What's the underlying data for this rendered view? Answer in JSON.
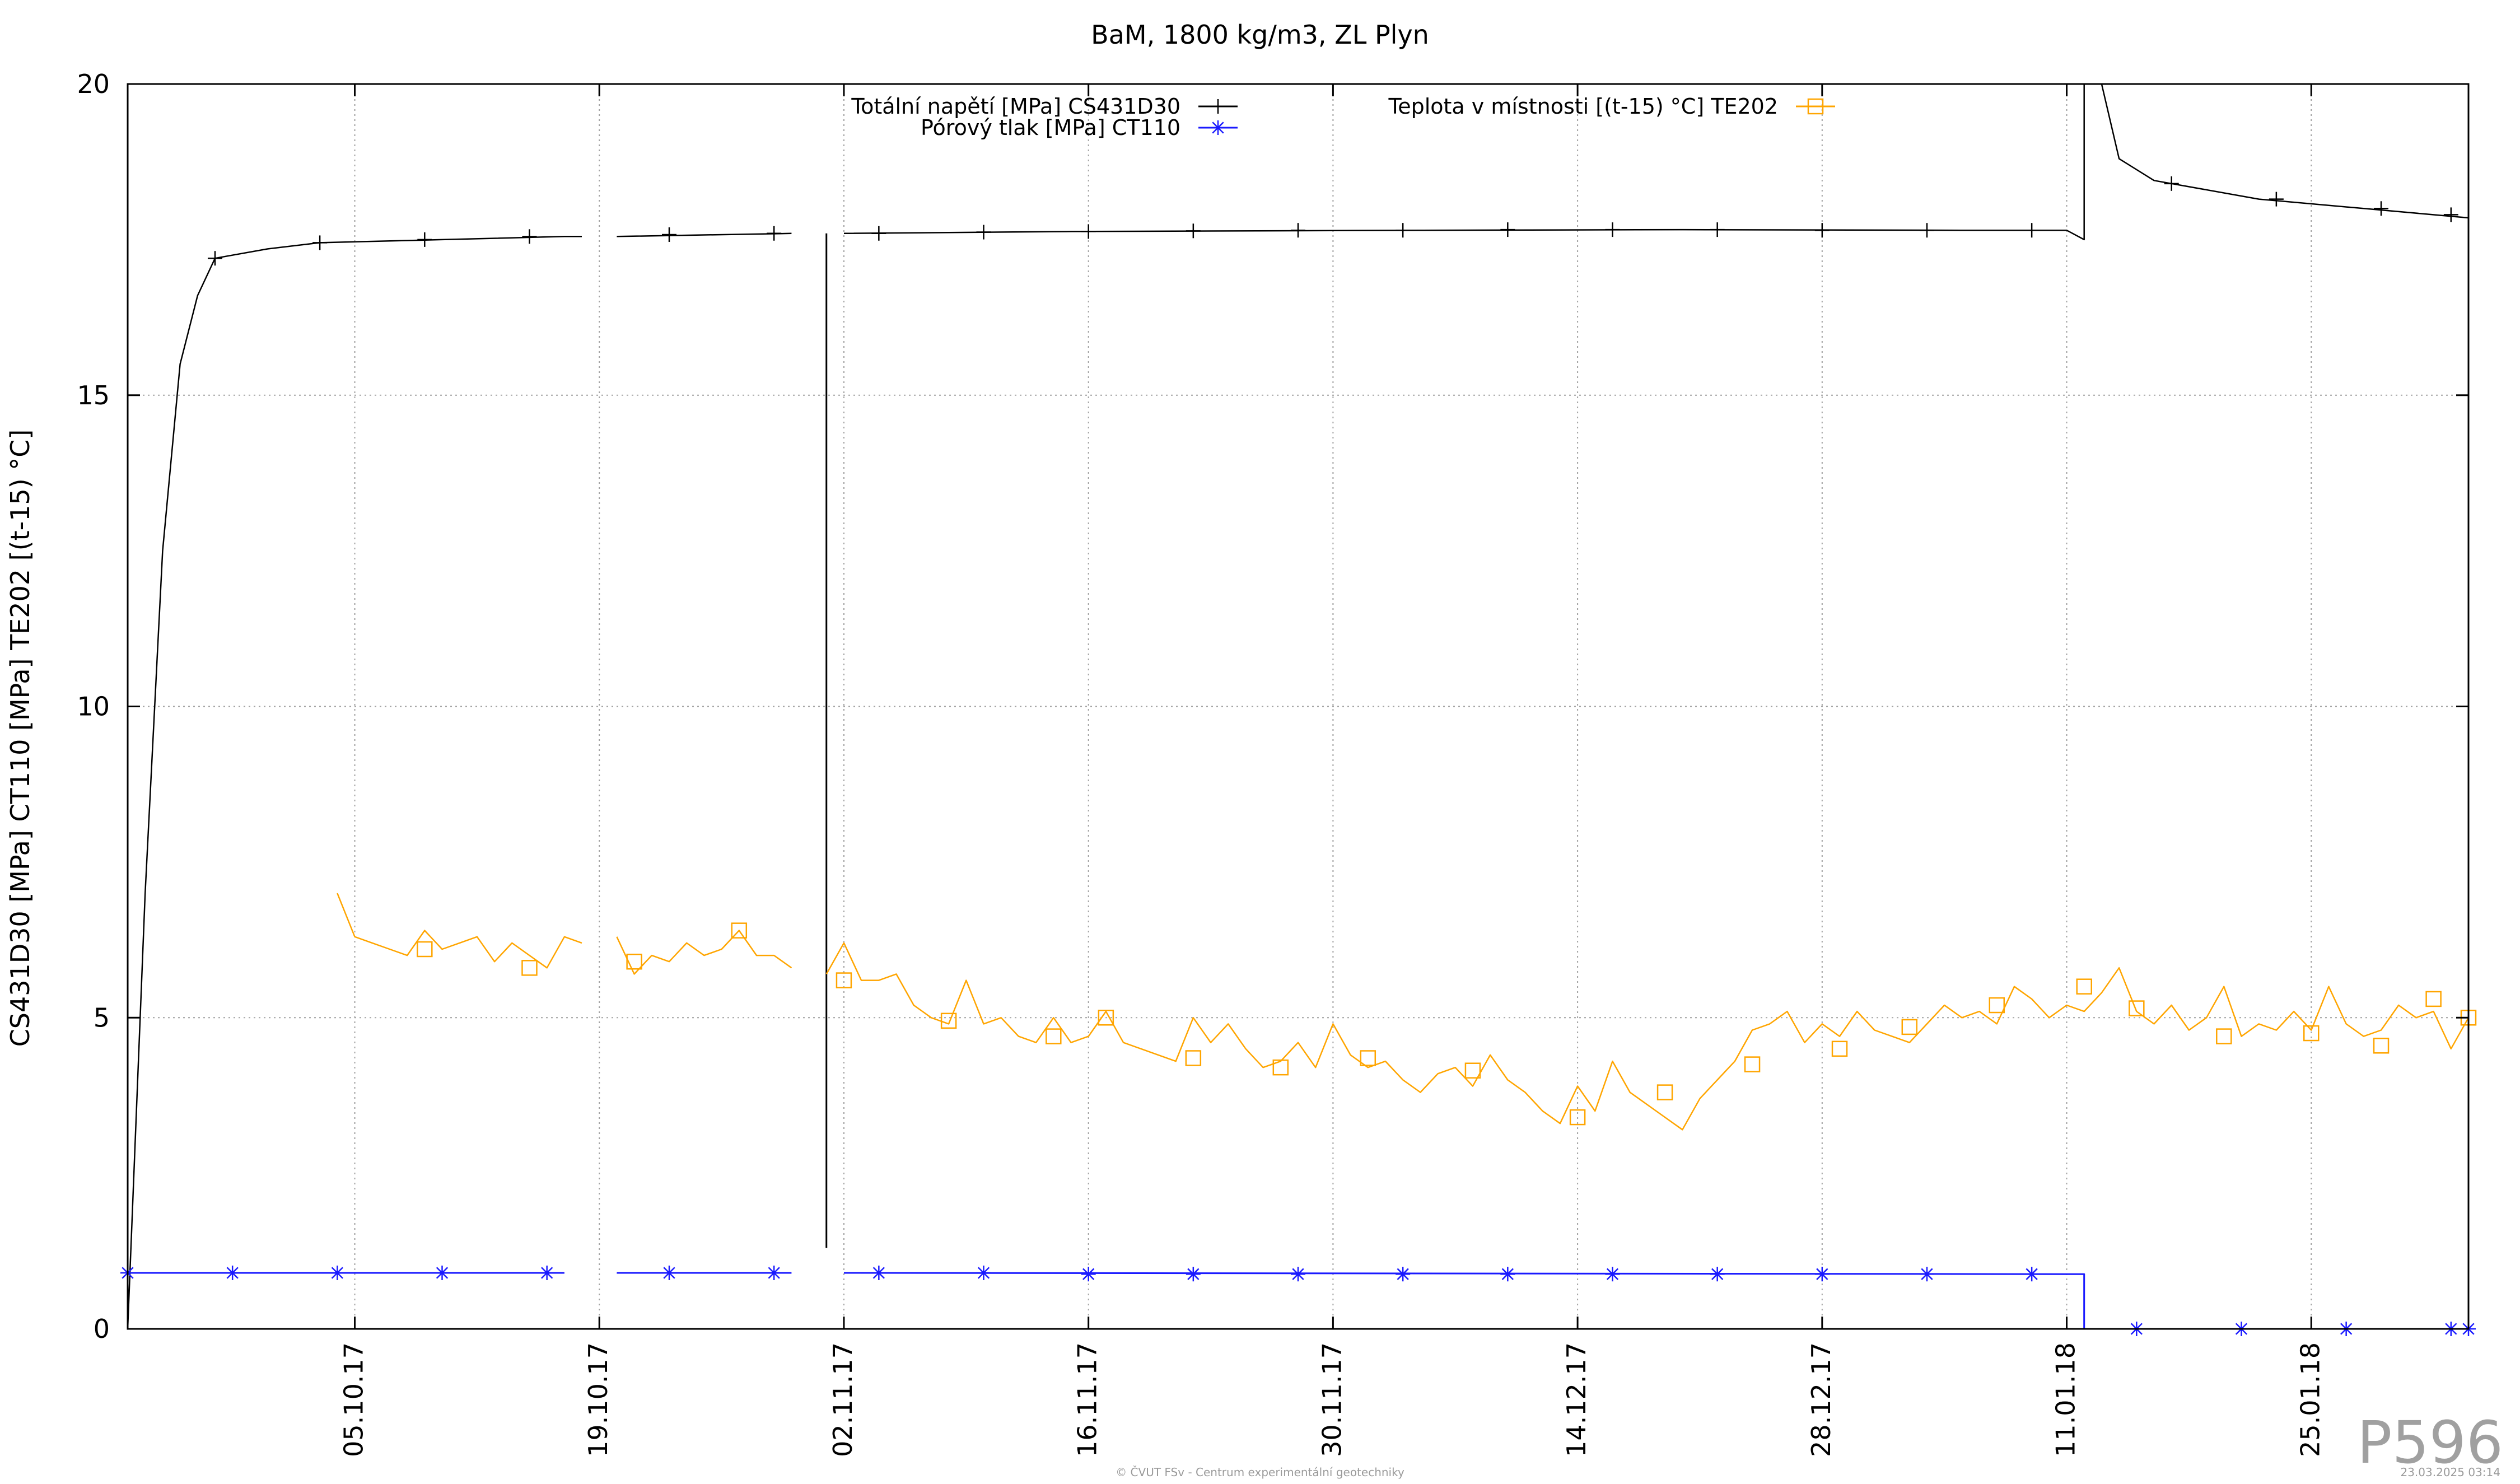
{
  "chart_data": {
    "type": "line",
    "title": "BaM, 1800 kg/m3, ZL Plyn",
    "ylabel": "CS431D30 [MPa] CT110 [MPa] TE202 [(t-15) °C]",
    "xlabel": "",
    "ylim": [
      0,
      20
    ],
    "xlim": [
      "2017-09-22",
      "2018-02-03"
    ],
    "y_ticks": [
      0,
      5,
      10,
      15,
      20
    ],
    "x_ticks": [
      "05.10.17",
      "19.10.17",
      "02.11.17",
      "16.11.17",
      "30.11.17",
      "14.12.17",
      "28.12.17",
      "11.01.18",
      "25.01.18"
    ],
    "grid": true,
    "legend_position": "top",
    "series": [
      {
        "name": "Totální napětí [MPa] CS431D30",
        "color": "#000000",
        "marker": "plus",
        "points": [
          [
            "2017-09-22",
            0.0
          ],
          [
            "2017-09-23",
            7.0
          ],
          [
            "2017-09-24",
            12.5
          ],
          [
            "2017-09-25",
            15.5
          ],
          [
            "2017-09-26",
            16.6
          ],
          [
            "2017-09-27",
            17.2
          ],
          [
            "2017-09-30",
            17.35
          ],
          [
            "2017-10-03",
            17.45
          ],
          [
            "2017-10-10",
            17.5
          ],
          [
            "2017-10-17",
            17.55
          ],
          [
            "2017-10-18",
            17.55
          ],
          [
            "2017-10-19",
            null
          ],
          [
            "2017-10-20",
            17.55
          ],
          [
            "2017-10-30",
            17.6
          ],
          [
            "2017-10-31",
            null
          ],
          [
            "2017-11-02",
            17.6
          ],
          [
            "2017-11-15",
            17.63
          ],
          [
            "2017-12-05",
            17.65
          ],
          [
            "2017-12-20",
            17.66
          ],
          [
            "2018-01-05",
            17.65
          ],
          [
            "2018-01-11",
            17.65
          ],
          [
            "2018-01-12",
            17.5
          ],
          [
            "2018-01-12",
            20.0
          ],
          [
            "2018-01-13",
            20.0
          ],
          [
            "2018-01-14",
            18.8
          ],
          [
            "2018-01-16",
            18.45
          ],
          [
            "2018-01-22",
            18.15
          ],
          [
            "2018-01-28",
            18.0
          ],
          [
            "2018-02-03",
            17.85
          ],
          [
            "2018-02-03",
            0.0
          ]
        ],
        "markers_at": [
          [
            "2017-09-27",
            17.2
          ],
          [
            "2017-10-03",
            17.45
          ],
          [
            "2017-10-09",
            17.5
          ],
          [
            "2017-10-15",
            17.55
          ],
          [
            "2017-10-23",
            17.58
          ],
          [
            "2017-10-29",
            17.6
          ],
          [
            "2017-11-04",
            17.6
          ],
          [
            "2017-11-10",
            17.62
          ],
          [
            "2017-11-16",
            17.63
          ],
          [
            "2017-11-22",
            17.64
          ],
          [
            "2017-11-28",
            17.65
          ],
          [
            "2017-12-04",
            17.65
          ],
          [
            "2017-12-10",
            17.66
          ],
          [
            "2017-12-16",
            17.66
          ],
          [
            "2017-12-22",
            17.66
          ],
          [
            "2017-12-28",
            17.65
          ],
          [
            "2018-01-03",
            17.65
          ],
          [
            "2018-01-09",
            17.65
          ],
          [
            "2018-01-17",
            18.4
          ],
          [
            "2018-01-23",
            18.15
          ],
          [
            "2018-01-29",
            18.0
          ],
          [
            "2018-02-02",
            17.9
          ]
        ],
        "spike": {
          "x": "2017-11-01",
          "y_from": 1.3,
          "y_to": 17.6
        }
      },
      {
        "name": "Pórový tlak [MPa] CT110",
        "color": "#1a1aff",
        "marker": "star",
        "points": [
          [
            "2017-09-22",
            0.9
          ],
          [
            "2017-10-17",
            0.9
          ],
          [
            "2017-10-18",
            null
          ],
          [
            "2017-10-20",
            0.9
          ],
          [
            "2017-10-30",
            0.9
          ],
          [
            "2017-10-31",
            null
          ],
          [
            "2017-11-02",
            0.9
          ],
          [
            "2018-01-11",
            0.88
          ],
          [
            "2018-01-12",
            0.88
          ],
          [
            "2018-01-12",
            0.0
          ],
          [
            "2018-02-03",
            0.0
          ]
        ],
        "markers_at": [
          [
            "2017-09-22",
            0.9
          ],
          [
            "2017-09-28",
            0.9
          ],
          [
            "2017-10-04",
            0.9
          ],
          [
            "2017-10-10",
            0.9
          ],
          [
            "2017-10-16",
            0.9
          ],
          [
            "2017-10-23",
            0.9
          ],
          [
            "2017-10-29",
            0.9
          ],
          [
            "2017-11-04",
            0.9
          ],
          [
            "2017-11-10",
            0.9
          ],
          [
            "2017-11-16",
            0.88
          ],
          [
            "2017-11-22",
            0.88
          ],
          [
            "2017-11-28",
            0.88
          ],
          [
            "2017-12-04",
            0.88
          ],
          [
            "2017-12-10",
            0.88
          ],
          [
            "2017-12-16",
            0.88
          ],
          [
            "2017-12-22",
            0.88
          ],
          [
            "2017-12-28",
            0.88
          ],
          [
            "2018-01-03",
            0.88
          ],
          [
            "2018-01-09",
            0.88
          ],
          [
            "2018-01-15",
            0.0
          ],
          [
            "2018-01-21",
            0.0
          ],
          [
            "2018-01-27",
            0.0
          ],
          [
            "2018-02-02",
            0.0
          ],
          [
            "2018-02-03",
            0.0
          ]
        ]
      },
      {
        "name": "Teplota v místnosti [(t-15) °C] TE202",
        "color": "#ffa500",
        "marker": "square",
        "points": [
          [
            "2017-10-04",
            7.0
          ],
          [
            "2017-10-05",
            6.3
          ],
          [
            "2017-10-06",
            6.2
          ],
          [
            "2017-10-07",
            6.1
          ],
          [
            "2017-10-08",
            6.0
          ],
          [
            "2017-10-09",
            6.4
          ],
          [
            "2017-10-10",
            6.1
          ],
          [
            "2017-10-11",
            6.2
          ],
          [
            "2017-10-12",
            6.3
          ],
          [
            "2017-10-13",
            5.9
          ],
          [
            "2017-10-14",
            6.2
          ],
          [
            "2017-10-15",
            6.0
          ],
          [
            "2017-10-16",
            5.8
          ],
          [
            "2017-10-17",
            6.3
          ],
          [
            "2017-10-18",
            6.2
          ],
          [
            "2017-10-19",
            null
          ],
          [
            "2017-10-20",
            6.3
          ],
          [
            "2017-10-21",
            5.7
          ],
          [
            "2017-10-22",
            6.0
          ],
          [
            "2017-10-23",
            5.9
          ],
          [
            "2017-10-24",
            6.2
          ],
          [
            "2017-10-25",
            6.0
          ],
          [
            "2017-10-26",
            6.1
          ],
          [
            "2017-10-27",
            6.4
          ],
          [
            "2017-10-28",
            6.0
          ],
          [
            "2017-10-29",
            6.0
          ],
          [
            "2017-10-30",
            5.8
          ],
          [
            "2017-10-31",
            null
          ],
          [
            "2017-11-01",
            5.7
          ],
          [
            "2017-11-02",
            6.2
          ],
          [
            "2017-11-03",
            5.6
          ],
          [
            "2017-11-04",
            5.6
          ],
          [
            "2017-11-05",
            5.7
          ],
          [
            "2017-11-06",
            5.2
          ],
          [
            "2017-11-07",
            5.0
          ],
          [
            "2017-11-08",
            4.9
          ],
          [
            "2017-11-09",
            5.6
          ],
          [
            "2017-11-10",
            4.9
          ],
          [
            "2017-11-11",
            5.0
          ],
          [
            "2017-11-12",
            4.7
          ],
          [
            "2017-11-13",
            4.6
          ],
          [
            "2017-11-14",
            5.0
          ],
          [
            "2017-11-15",
            4.6
          ],
          [
            "2017-11-16",
            4.7
          ],
          [
            "2017-11-17",
            5.1
          ],
          [
            "2017-11-18",
            4.6
          ],
          [
            "2017-11-19",
            4.5
          ],
          [
            "2017-11-20",
            4.4
          ],
          [
            "2017-11-21",
            4.3
          ],
          [
            "2017-11-22",
            5.0
          ],
          [
            "2017-11-23",
            4.6
          ],
          [
            "2017-11-24",
            4.9
          ],
          [
            "2017-11-25",
            4.5
          ],
          [
            "2017-11-26",
            4.2
          ],
          [
            "2017-11-27",
            4.3
          ],
          [
            "2017-11-28",
            4.6
          ],
          [
            "2017-11-29",
            4.2
          ],
          [
            "2017-11-30",
            4.9
          ],
          [
            "2017-12-01",
            4.4
          ],
          [
            "2017-12-02",
            4.2
          ],
          [
            "2017-12-03",
            4.3
          ],
          [
            "2017-12-04",
            4.0
          ],
          [
            "2017-12-05",
            3.8
          ],
          [
            "2017-12-06",
            4.1
          ],
          [
            "2017-12-07",
            4.2
          ],
          [
            "2017-12-08",
            3.9
          ],
          [
            "2017-12-09",
            4.4
          ],
          [
            "2017-12-10",
            4.0
          ],
          [
            "2017-12-11",
            3.8
          ],
          [
            "2017-12-12",
            3.5
          ],
          [
            "2017-12-13",
            3.3
          ],
          [
            "2017-12-14",
            3.9
          ],
          [
            "2017-12-15",
            3.5
          ],
          [
            "2017-12-16",
            4.3
          ],
          [
            "2017-12-17",
            3.8
          ],
          [
            "2017-12-18",
            3.6
          ],
          [
            "2017-12-19",
            3.4
          ],
          [
            "2017-12-20",
            3.2
          ],
          [
            "2017-12-21",
            3.7
          ],
          [
            "2017-12-22",
            4.0
          ],
          [
            "2017-12-23",
            4.3
          ],
          [
            "2017-12-24",
            4.8
          ],
          [
            "2017-12-25",
            4.9
          ],
          [
            "2017-12-26",
            5.1
          ],
          [
            "2017-12-27",
            4.6
          ],
          [
            "2017-12-28",
            4.9
          ],
          [
            "2017-12-29",
            4.7
          ],
          [
            "2017-12-30",
            5.1
          ],
          [
            "2017-12-31",
            4.8
          ],
          [
            "2018-01-01",
            4.7
          ],
          [
            "2018-01-02",
            4.6
          ],
          [
            "2018-01-03",
            4.9
          ],
          [
            "2018-01-04",
            5.2
          ],
          [
            "2018-01-05",
            5.0
          ],
          [
            "2018-01-06",
            5.1
          ],
          [
            "2018-01-07",
            4.9
          ],
          [
            "2018-01-08",
            5.5
          ],
          [
            "2018-01-09",
            5.3
          ],
          [
            "2018-01-10",
            5.0
          ],
          [
            "2018-01-11",
            5.2
          ],
          [
            "2018-01-12",
            5.1
          ],
          [
            "2018-01-13",
            5.4
          ],
          [
            "2018-01-14",
            5.8
          ],
          [
            "2018-01-15",
            5.1
          ],
          [
            "2018-01-16",
            4.9
          ],
          [
            "2018-01-17",
            5.2
          ],
          [
            "2018-01-18",
            4.8
          ],
          [
            "2018-01-19",
            5.0
          ],
          [
            "2018-01-20",
            5.5
          ],
          [
            "2018-01-21",
            4.7
          ],
          [
            "2018-01-22",
            4.9
          ],
          [
            "2018-01-23",
            4.8
          ],
          [
            "2018-01-24",
            5.1
          ],
          [
            "2018-01-25",
            4.8
          ],
          [
            "2018-01-26",
            5.5
          ],
          [
            "2018-01-27",
            4.9
          ],
          [
            "2018-01-28",
            4.7
          ],
          [
            "2018-01-29",
            4.8
          ],
          [
            "2018-01-30",
            5.2
          ],
          [
            "2018-01-31",
            5.0
          ],
          [
            "2018-02-01",
            5.1
          ],
          [
            "2018-02-02",
            4.5
          ],
          [
            "2018-02-03",
            5.0
          ]
        ],
        "markers_at": [
          [
            "2017-10-09",
            6.1
          ],
          [
            "2017-10-15",
            5.8
          ],
          [
            "2017-10-21",
            5.9
          ],
          [
            "2017-10-27",
            6.4
          ],
          [
            "2017-11-02",
            5.6
          ],
          [
            "2017-11-08",
            4.95
          ],
          [
            "2017-11-14",
            4.7
          ],
          [
            "2017-11-17",
            5.0
          ],
          [
            "2017-11-22",
            4.35
          ],
          [
            "2017-11-27",
            4.2
          ],
          [
            "2017-12-02",
            4.35
          ],
          [
            "2017-12-08",
            4.15
          ],
          [
            "2017-12-14",
            3.4
          ],
          [
            "2017-12-19",
            3.8
          ],
          [
            "2017-12-24",
            4.25
          ],
          [
            "2017-12-29",
            4.5
          ],
          [
            "2018-01-02",
            4.85
          ],
          [
            "2018-01-07",
            5.2
          ],
          [
            "2018-01-12",
            5.5
          ],
          [
            "2018-01-15",
            5.15
          ],
          [
            "2018-01-20",
            4.7
          ],
          [
            "2018-01-25",
            4.75
          ],
          [
            "2018-01-29",
            4.55
          ],
          [
            "2018-02-01",
            5.3
          ],
          [
            "2018-02-03",
            5.0
          ]
        ]
      }
    ]
  },
  "watermark": "P596",
  "footer": {
    "credit": "© ČVUT FSv - Centrum experimentální geotechniky",
    "timestamp": "23.03.2025 03:14"
  }
}
